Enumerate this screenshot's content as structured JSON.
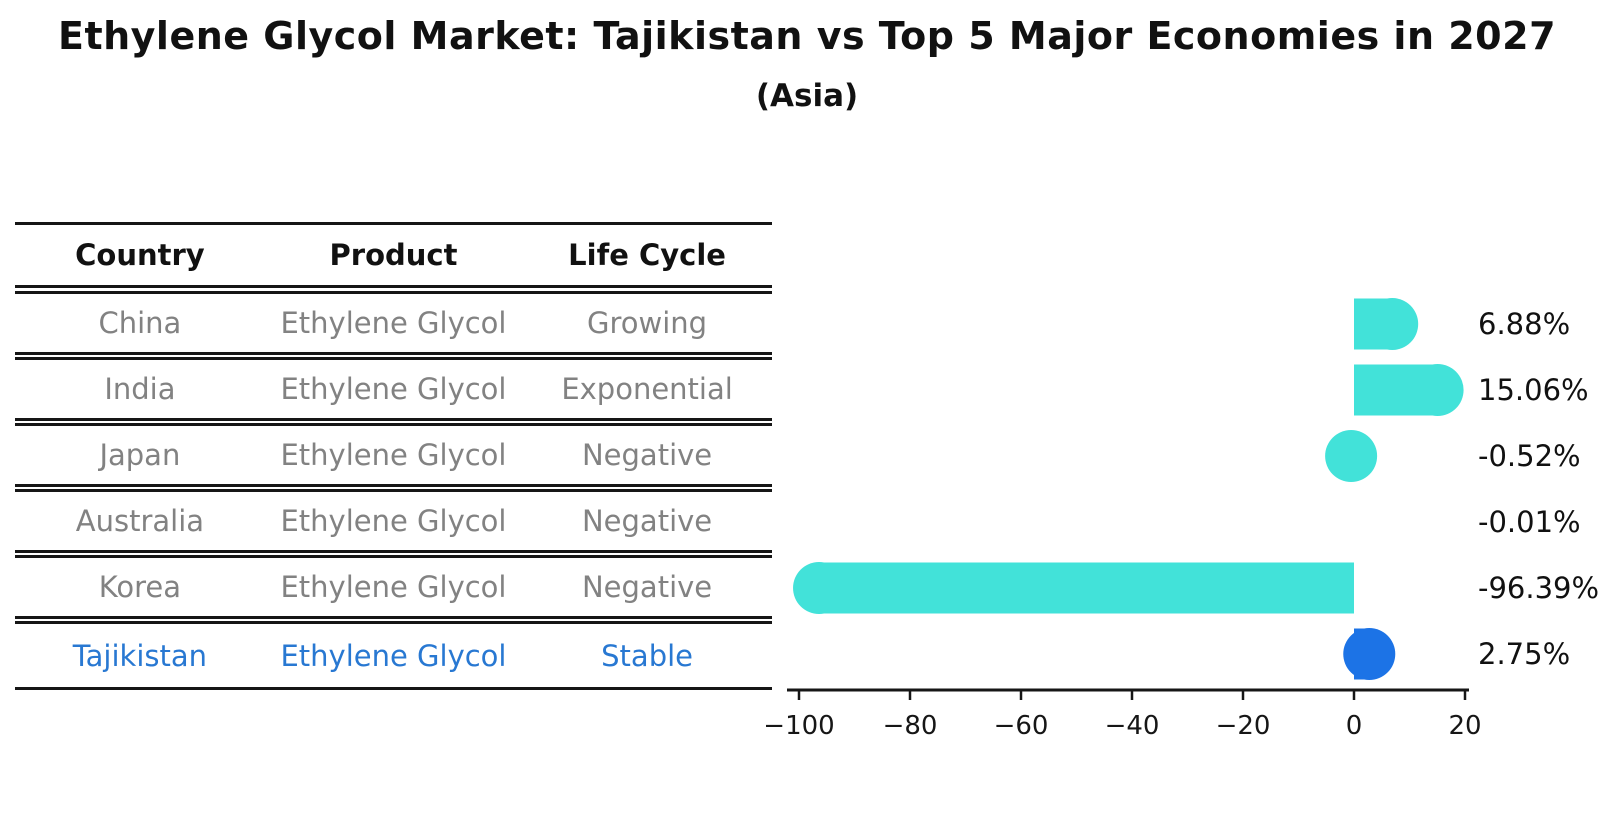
{
  "title": "Ethylene Glycol Market: Tajikistan vs Top 5 Major Economies in 2027",
  "subtitle": "(Asia)",
  "table": {
    "headers": [
      "Country",
      "Product",
      "Life Cycle"
    ],
    "rows": [
      {
        "country": "China",
        "product": "Ethylene Glycol",
        "life_cycle": "Growing"
      },
      {
        "country": "India",
        "product": "Ethylene Glycol",
        "life_cycle": "Exponential"
      },
      {
        "country": "Japan",
        "product": "Ethylene Glycol",
        "life_cycle": "Negative"
      },
      {
        "country": "Australia",
        "product": "Ethylene Glycol",
        "life_cycle": "Negative"
      },
      {
        "country": "Korea",
        "product": "Ethylene Glycol",
        "life_cycle": "Negative"
      },
      {
        "country": "Tajikistan",
        "product": "Ethylene Glycol",
        "life_cycle": "Stable"
      }
    ],
    "highlight_row": "Tajikistan"
  },
  "chart_data": {
    "type": "bar",
    "orientation": "horizontal",
    "categories": [
      "China",
      "India",
      "Japan",
      "Australia",
      "Korea",
      "Tajikistan"
    ],
    "values": [
      6.88,
      15.06,
      -0.52,
      -0.01,
      -96.39,
      2.75
    ],
    "value_labels": [
      "6.88%",
      "15.06%",
      "-0.52%",
      "-0.01%",
      "-96.39%",
      "2.75%"
    ],
    "x_ticks": [
      -100,
      -80,
      -60,
      -40,
      -20,
      0,
      20
    ],
    "x_tick_labels": [
      "−100",
      "−80",
      "−60",
      "−40",
      "−20",
      "0",
      "20"
    ],
    "xlim": [
      -102,
      21
    ],
    "grid": false,
    "legend": false,
    "title": "",
    "xlabel": "",
    "ylabel": "",
    "bar_color": "#42E2D9",
    "highlight_color": "#1C73E6",
    "highlight_index": 5
  },
  "colors": {
    "text": "#111111",
    "muted_text": "#828282",
    "highlight_text": "#2878D2",
    "bar": "#42E2D9",
    "highlight_bar": "#1C73E6",
    "line": "#161616",
    "background": "#ffffff"
  }
}
